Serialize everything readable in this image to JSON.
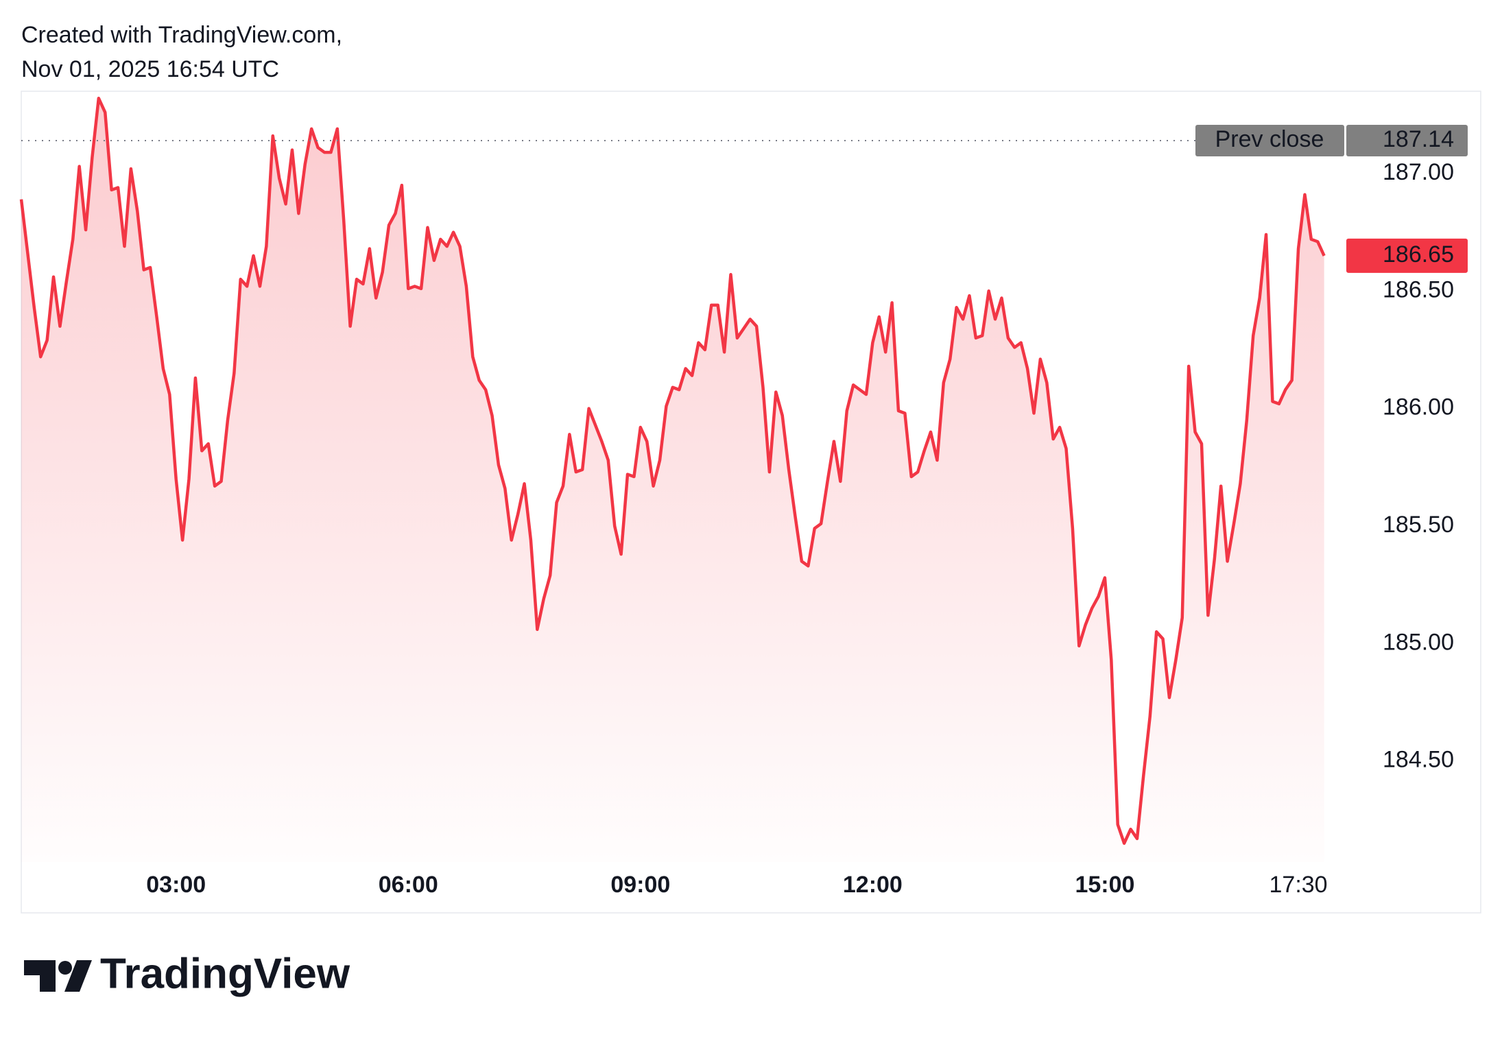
{
  "header": {
    "line1": "Created with TradingView.com,",
    "line2": "Nov 01, 2025 16:54 UTC"
  },
  "footer": {
    "brand": "TradingView"
  },
  "chart_data": {
    "type": "area",
    "color": "#f23645",
    "x": [
      "01:00",
      "01:05",
      "01:10",
      "01:15",
      "01:20",
      "01:25",
      "01:30",
      "01:35",
      "01:40",
      "01:45",
      "01:50",
      "01:55",
      "02:00",
      "02:05",
      "02:10",
      "02:15",
      "02:20",
      "02:25",
      "02:30",
      "02:35",
      "02:40",
      "02:45",
      "02:50",
      "02:55",
      "03:00",
      "03:05",
      "03:10",
      "03:15",
      "03:20",
      "03:25",
      "03:30",
      "03:35",
      "03:40",
      "03:45",
      "03:50",
      "03:55",
      "04:00",
      "04:05",
      "04:10",
      "04:15",
      "04:20",
      "04:25",
      "04:30",
      "04:35",
      "04:40",
      "04:45",
      "04:50",
      "04:55",
      "05:00",
      "05:05",
      "05:10",
      "05:15",
      "05:20",
      "05:25",
      "05:30",
      "05:35",
      "05:40",
      "05:45",
      "05:50",
      "05:55",
      "06:00",
      "06:05",
      "06:10",
      "06:15",
      "06:20",
      "06:25",
      "06:30",
      "06:35",
      "06:40",
      "06:45",
      "06:50",
      "06:55",
      "07:00",
      "07:05",
      "07:10",
      "07:15",
      "07:20",
      "07:25",
      "07:30",
      "07:35",
      "07:40",
      "07:45",
      "07:50",
      "07:55",
      "08:00",
      "08:05",
      "08:10",
      "08:15",
      "08:20",
      "08:25",
      "08:30",
      "08:35",
      "08:40",
      "08:45",
      "08:50",
      "08:55",
      "09:00",
      "09:05",
      "09:10",
      "09:15",
      "09:20",
      "09:25",
      "09:30",
      "09:35",
      "09:40",
      "09:45",
      "09:50",
      "09:55",
      "10:00",
      "10:05",
      "10:10",
      "10:15",
      "10:20",
      "10:25",
      "10:30",
      "10:35",
      "10:40",
      "10:45",
      "10:50",
      "10:55",
      "11:00",
      "11:05",
      "11:10",
      "11:15",
      "11:20",
      "11:25",
      "11:30",
      "11:35",
      "11:40",
      "11:45",
      "11:50",
      "11:55",
      "12:00",
      "12:05",
      "12:10",
      "12:15",
      "12:20",
      "12:25",
      "12:30",
      "12:35",
      "12:40",
      "12:45",
      "12:50",
      "12:55",
      "13:00",
      "13:05",
      "13:10",
      "13:15",
      "13:20",
      "13:25",
      "13:30",
      "13:35",
      "13:40",
      "13:45",
      "13:50",
      "13:55",
      "14:00",
      "14:05",
      "14:10",
      "14:15",
      "14:20",
      "14:25",
      "14:30",
      "14:35",
      "14:40",
      "14:45",
      "14:50",
      "14:55",
      "15:00",
      "15:05",
      "15:10",
      "15:15",
      "15:20",
      "15:25",
      "15:30",
      "15:35",
      "15:40",
      "15:45",
      "15:50",
      "15:55",
      "16:00",
      "16:05",
      "16:10",
      "16:15",
      "16:20",
      "16:25",
      "16:30",
      "16:35",
      "16:40",
      "16:45",
      "16:50",
      "16:55",
      "17:00",
      "17:05",
      "17:10",
      "17:15",
      "17:20",
      "17:25",
      "17:30",
      "17:35",
      "17:40",
      "17:45",
      "17:50"
    ],
    "values": [
      186.89,
      186.66,
      186.43,
      186.22,
      186.29,
      186.56,
      186.35,
      186.54,
      186.72,
      187.03,
      186.76,
      187.07,
      187.32,
      187.26,
      186.93,
      186.94,
      186.69,
      187.02,
      186.84,
      186.59,
      186.6,
      186.39,
      186.17,
      186.06,
      185.7,
      185.44,
      185.7,
      186.13,
      185.82,
      185.85,
      185.67,
      185.69,
      185.95,
      186.15,
      186.55,
      186.52,
      186.65,
      186.52,
      186.69,
      187.16,
      186.98,
      186.87,
      187.1,
      186.83,
      187.04,
      187.19,
      187.11,
      187.09,
      187.09,
      187.19,
      186.8,
      186.35,
      186.55,
      186.53,
      186.68,
      186.47,
      186.58,
      186.78,
      186.83,
      186.95,
      186.51,
      186.52,
      186.51,
      186.77,
      186.63,
      186.72,
      186.69,
      186.75,
      186.69,
      186.52,
      186.22,
      186.12,
      186.08,
      185.97,
      185.76,
      185.66,
      185.44,
      185.55,
      185.68,
      185.44,
      185.06,
      185.19,
      185.29,
      185.6,
      185.67,
      185.89,
      185.73,
      185.74,
      186.0,
      185.93,
      185.86,
      185.78,
      185.5,
      185.38,
      185.72,
      185.71,
      185.92,
      185.86,
      185.67,
      185.78,
      186.01,
      186.09,
      186.08,
      186.17,
      186.14,
      186.28,
      186.25,
      186.44,
      186.44,
      186.24,
      186.57,
      186.3,
      186.34,
      186.38,
      186.35,
      186.09,
      185.73,
      186.07,
      185.97,
      185.74,
      185.54,
      185.35,
      185.33,
      185.49,
      185.51,
      185.69,
      185.86,
      185.69,
      185.99,
      186.1,
      186.08,
      186.06,
      186.28,
      186.39,
      186.24,
      186.45,
      185.99,
      185.98,
      185.71,
      185.73,
      185.82,
      185.9,
      185.78,
      186.11,
      186.21,
      186.43,
      186.38,
      186.48,
      186.3,
      186.31,
      186.5,
      186.38,
      186.47,
      186.3,
      186.26,
      186.28,
      186.17,
      185.98,
      186.21,
      186.11,
      185.87,
      185.92,
      185.83,
      185.49,
      184.99,
      185.08,
      185.15,
      185.2,
      185.28,
      184.93,
      184.23,
      184.15,
      184.21,
      184.17,
      184.44,
      184.69,
      185.05,
      185.02,
      184.77,
      184.93,
      185.11,
      186.18,
      185.9,
      185.85,
      185.12,
      185.36,
      185.67,
      185.35,
      185.51,
      185.68,
      185.95,
      186.31,
      186.47,
      186.74,
      186.03,
      186.02,
      186.08,
      186.12,
      186.68,
      186.91,
      186.72,
      186.71,
      186.65
    ],
    "xlim": [
      "01:00",
      "18:04"
    ],
    "xticks": [
      "03:00",
      "06:00",
      "09:00",
      "12:00",
      "15:00",
      "17:30"
    ],
    "ylim": [
      184.07,
      187.35
    ],
    "yticks": [
      {
        "value": 184.5,
        "label": "184.50"
      },
      {
        "value": 185,
        "label": "185.00"
      },
      {
        "value": 185.5,
        "label": "185.50"
      },
      {
        "value": 186,
        "label": "186.00"
      },
      {
        "value": 186.5,
        "label": "186.50"
      },
      {
        "value": 187,
        "label": "187.00"
      }
    ],
    "prev_close": {
      "label": "Prev close",
      "value": 187.14
    }
  }
}
